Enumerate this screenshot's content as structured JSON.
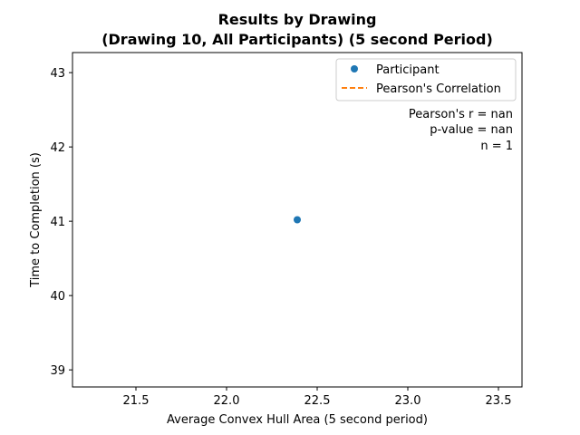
{
  "chart_data": {
    "type": "scatter",
    "title_line1": "Results by Drawing",
    "title_line2": "(Drawing 10, All Participants) (5 second Period)",
    "xlabel": "Average Convex Hull Area (5 second period)",
    "ylabel": "Time to Completion (s)",
    "xlim": [
      21.15,
      23.63
    ],
    "ylim": [
      38.77,
      43.27
    ],
    "xticks": [
      21.5,
      22.0,
      22.5,
      23.0,
      23.5
    ],
    "xtick_labels": [
      "21.5",
      "22.0",
      "22.5",
      "23.0",
      "23.5"
    ],
    "yticks": [
      39,
      40,
      41,
      42,
      43
    ],
    "ytick_labels": [
      "39",
      "40",
      "41",
      "42",
      "43"
    ],
    "grid": false,
    "legend_position": "top-right",
    "series": [
      {
        "name": "Participant",
        "kind": "points",
        "color": "#1f77b4",
        "points": [
          {
            "x": 22.39,
            "y": 41.02
          }
        ]
      },
      {
        "name": "Pearson's Correlation",
        "kind": "dashed-line",
        "color": "#ff7f0e",
        "points": []
      }
    ],
    "annotations": [
      "Pearson's r = nan",
      "p-value = nan",
      "n = 1"
    ]
  }
}
